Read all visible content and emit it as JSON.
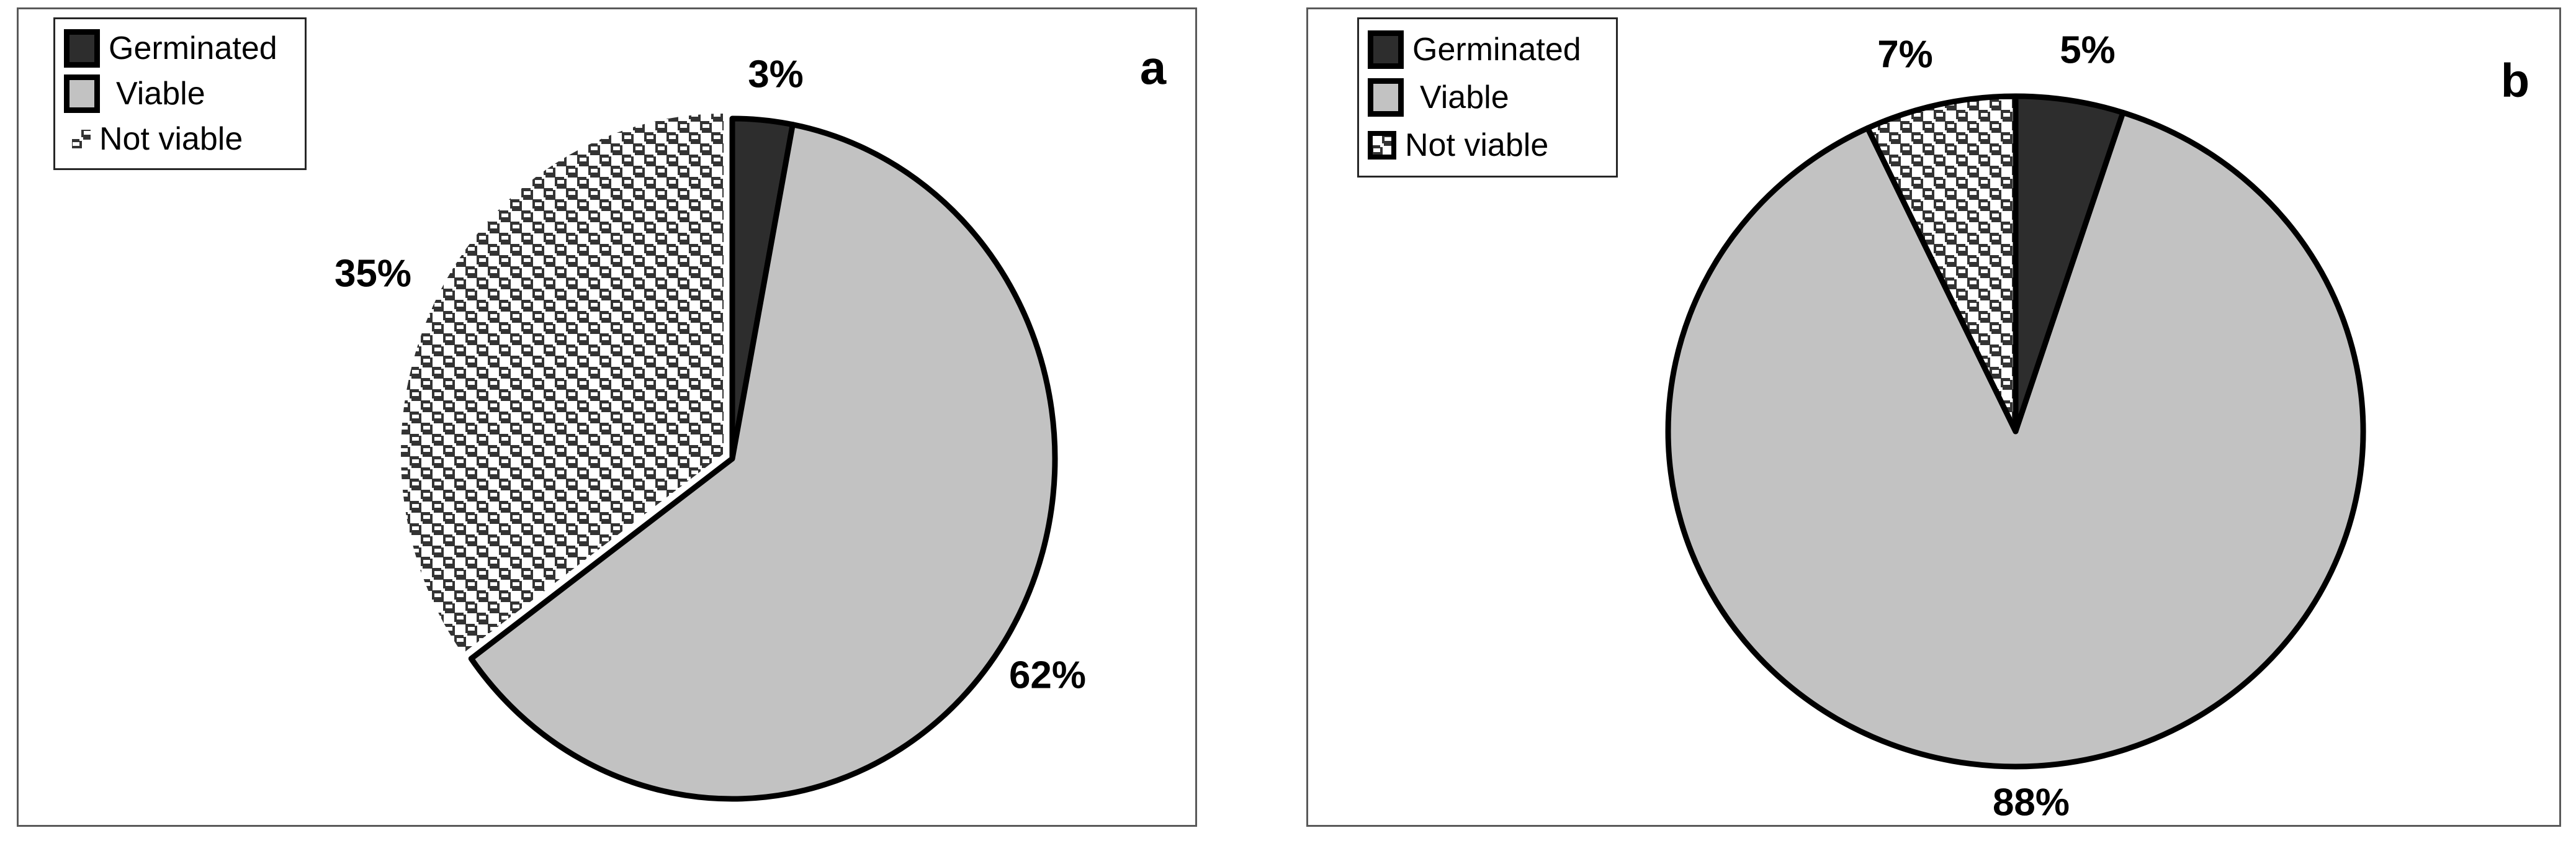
{
  "colors": {
    "germinated_dark": "#2d2d2d",
    "viable_gray": "#c2c2c2",
    "pattern_fg": "#333333",
    "pattern_bg": "#ffffff",
    "outline": "#000000"
  },
  "chart_data": [
    {
      "type": "pie",
      "panel_label": "a",
      "start_angle_deg": 0,
      "direction": "clockwise",
      "legend_position": "top-left",
      "slices": [
        {
          "label": "Germinated",
          "value": 3,
          "pct_label": "3%",
          "fill": "dark",
          "outlined": true,
          "exploded": false
        },
        {
          "label": "Viable",
          "value": 62,
          "pct_label": "62%",
          "fill": "light",
          "outlined": true,
          "exploded": false
        },
        {
          "label": "Not viable",
          "value": 35,
          "pct_label": "35%",
          "fill": "pattern",
          "outlined": false,
          "exploded": true
        }
      ]
    },
    {
      "type": "pie",
      "panel_label": "b",
      "start_angle_deg": 0,
      "direction": "clockwise",
      "legend_position": "top-left",
      "slices": [
        {
          "label": "Germinated",
          "value": 5,
          "pct_label": "5%",
          "fill": "dark",
          "outlined": true,
          "exploded": false
        },
        {
          "label": "Viable",
          "value": 88,
          "pct_label": "88%",
          "fill": "light",
          "outlined": true,
          "exploded": false
        },
        {
          "label": "Not viable",
          "value": 7,
          "pct_label": "7%",
          "fill": "pattern",
          "outlined": true,
          "exploded": false
        }
      ]
    }
  ]
}
